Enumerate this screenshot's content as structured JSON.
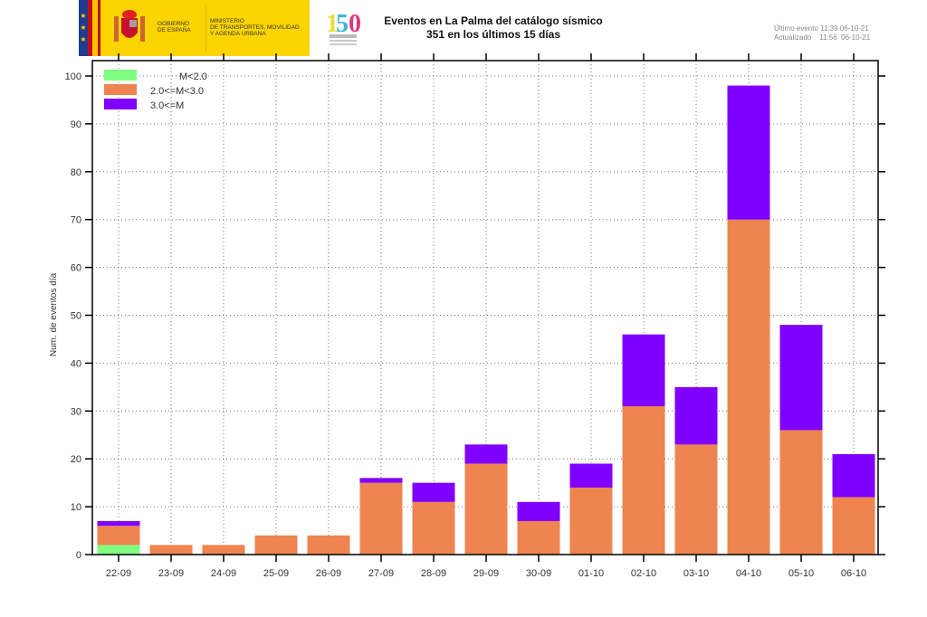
{
  "header": {
    "gov_line1": "GOBIERNO",
    "gov_line2": "DE ESPAÑA",
    "ministry_line1": "MINISTERIO",
    "ministry_line2": "DE TRANSPORTES, MOVILIDAD",
    "ministry_line3": "Y AGENDA URBANA",
    "logo_text": "150",
    "logo_caption": "Instituto Geográfico Nacional 1870-2020",
    "last_event_label": "Último evento 11:39 06-10-21",
    "updated_label": "Actualizado    11:56  06-10-21"
  },
  "colors": {
    "m_lt_2": "#80ff80",
    "m_2_3": "#ee8450",
    "m_ge_3": "#8000ff",
    "banner_yellow": "#fcd400"
  },
  "chart_data": {
    "type": "bar",
    "stacked": true,
    "title": "Eventos en La Palma del catálogo sísmico",
    "subtitle": "351 en los últimos 15 días",
    "xlabel": "",
    "ylabel": "Num. de eventos día",
    "ylim": [
      0,
      100
    ],
    "yticks": [
      0,
      10,
      20,
      30,
      40,
      50,
      60,
      70,
      80,
      90,
      100
    ],
    "grid": true,
    "legend_position": "top-left",
    "categories": [
      "22-09",
      "23-09",
      "24-09",
      "25-09",
      "26-09",
      "27-09",
      "28-09",
      "29-09",
      "30-09",
      "01-10",
      "02-10",
      "03-10",
      "04-10",
      "05-10",
      "06-10"
    ],
    "series": [
      {
        "name": "M<2.0",
        "color": "#80ff80",
        "values": [
          2,
          0,
          0,
          0,
          0,
          0,
          0,
          0,
          0,
          0,
          0,
          0,
          0,
          0,
          0
        ]
      },
      {
        "name": "2.0<=M<3.0",
        "color": "#ee8450",
        "values": [
          4,
          2,
          2,
          4,
          4,
          15,
          11,
          19,
          7,
          14,
          31,
          23,
          70,
          26,
          12
        ]
      },
      {
        "name": "3.0<=M",
        "color": "#8000ff",
        "values": [
          1,
          0,
          0,
          0,
          0,
          1,
          4,
          4,
          4,
          5,
          15,
          12,
          28,
          22,
          9
        ]
      }
    ]
  }
}
